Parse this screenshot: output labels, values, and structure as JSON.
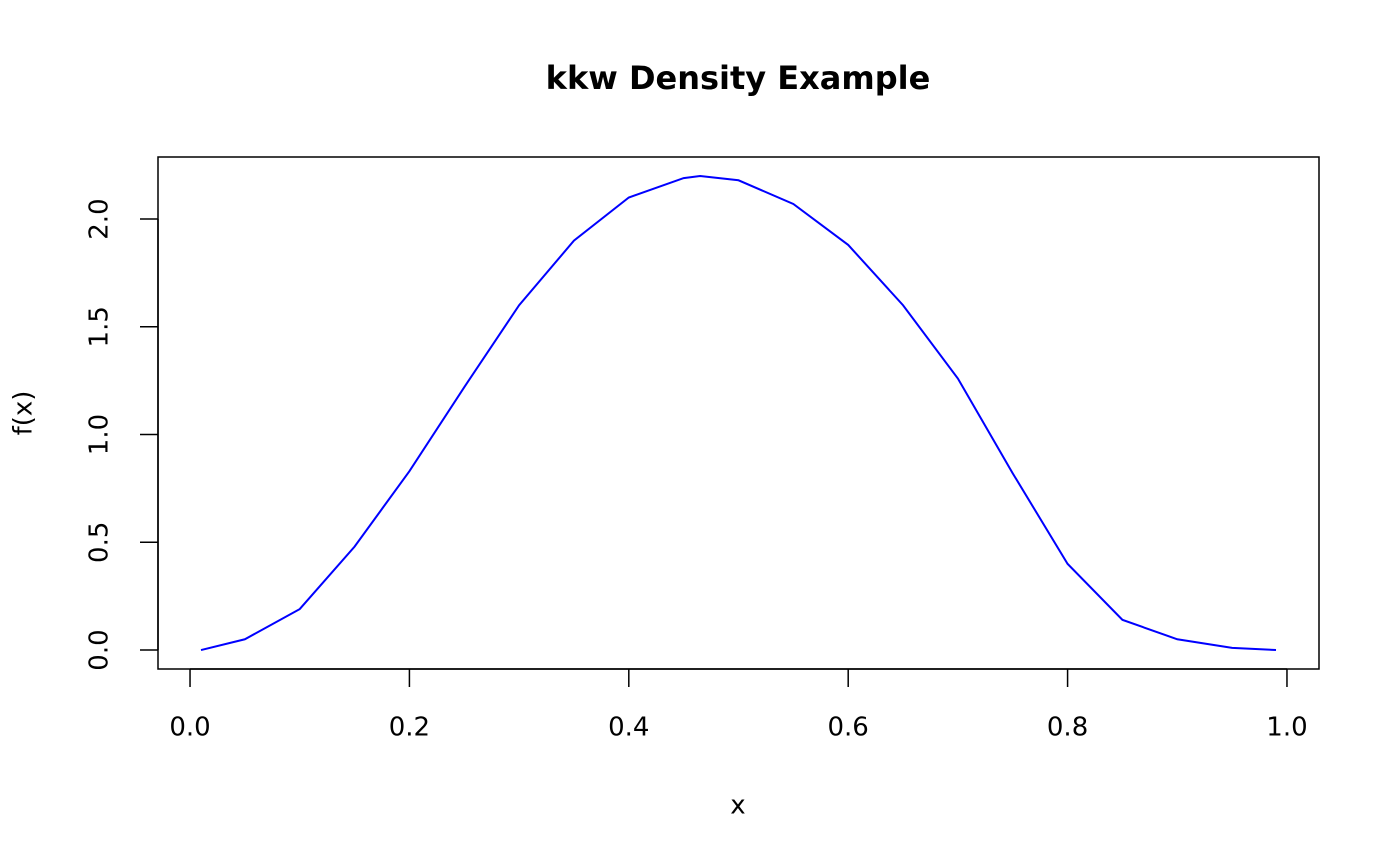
{
  "chart_data": {
    "type": "line",
    "title": "kkw Density Example",
    "x_label": "x",
    "y_label": "f(x)",
    "x": [
      0.01,
      0.05,
      0.1,
      0.15,
      0.2,
      0.25,
      0.3,
      0.35,
      0.4,
      0.45,
      0.465,
      0.5,
      0.55,
      0.6,
      0.65,
      0.7,
      0.75,
      0.8,
      0.85,
      0.9,
      0.95,
      0.99
    ],
    "series": [
      {
        "color": "#0000ff",
        "values": [
          0.0,
          0.05,
          0.19,
          0.48,
          0.83,
          1.22,
          1.6,
          1.9,
          2.1,
          2.19,
          2.2,
          2.18,
          2.07,
          1.88,
          1.6,
          1.26,
          0.82,
          0.4,
          0.14,
          0.05,
          0.01,
          0.0
        ]
      }
    ],
    "xlim": [
      -0.0292,
      1.0292
    ],
    "xticks": [
      {
        "value": 0,
        "label": "0.0"
      },
      0.2,
      0.4,
      0.6,
      0.8,
      {
        "value": 1,
        "label": "1.0"
      }
    ],
    "ylim": [
      -0.088,
      2.288
    ],
    "yticks": [
      {
        "value": 0,
        "label": "0.0"
      },
      0.5,
      {
        "value": 1,
        "label": "1.0"
      },
      1.5,
      {
        "value": 2,
        "label": "2.0"
      }
    ]
  }
}
